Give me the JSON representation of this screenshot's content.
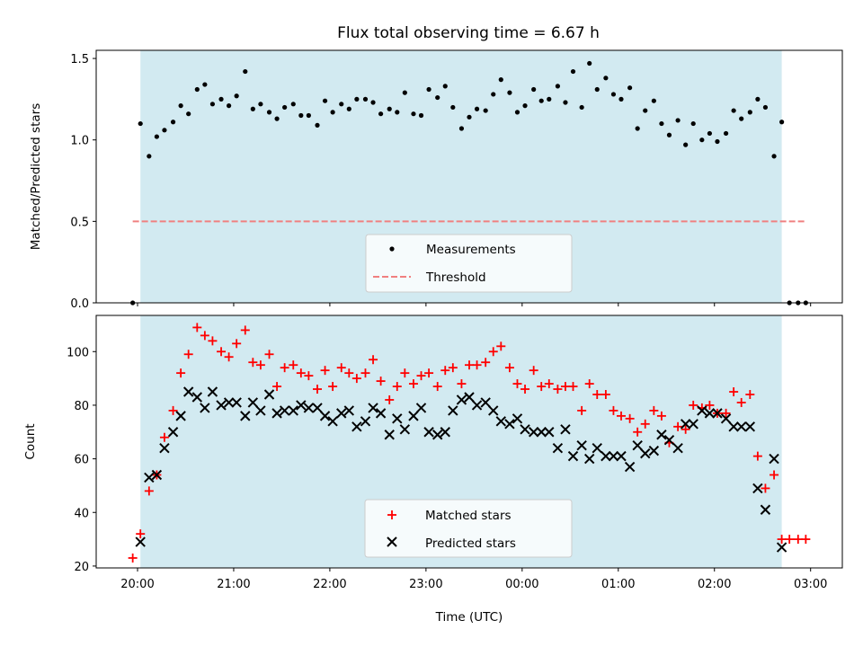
{
  "chart_data": [
    {
      "type": "scatter",
      "title": "Flux total observing time = 6.67 h",
      "xlabel": "",
      "ylabel": "Matched/Predicted stars",
      "xlim": [
        19.57,
        27.33
      ],
      "ylim": [
        0,
        1.55
      ],
      "x_ticks": [
        20,
        21,
        22,
        23,
        24,
        25,
        26,
        27
      ],
      "y_ticks": [
        0.0,
        0.5,
        1.0,
        1.5
      ],
      "y_tick_labels": [
        "0.0",
        "0.5",
        "1.0",
        "1.5"
      ],
      "shaded_span": [
        20.03,
        26.7
      ],
      "shade_color": "#add8e6",
      "legend_position": "lower center",
      "series": [
        {
          "name": "Measurements",
          "marker": "dot",
          "color": "#000000",
          "x": [
            19.95,
            20.03,
            20.12,
            20.2,
            20.28,
            20.37,
            20.45,
            20.53,
            20.62,
            20.7,
            20.78,
            20.87,
            20.95,
            21.03,
            21.12,
            21.2,
            21.28,
            21.37,
            21.45,
            21.53,
            21.62,
            21.7,
            21.78,
            21.87,
            21.95,
            22.03,
            22.12,
            22.2,
            22.28,
            22.37,
            22.45,
            22.53,
            22.62,
            22.7,
            22.78,
            22.87,
            22.95,
            23.03,
            23.12,
            23.2,
            23.28,
            23.37,
            23.45,
            23.53,
            23.62,
            23.7,
            23.78,
            23.87,
            23.95,
            24.03,
            24.12,
            24.2,
            24.28,
            24.37,
            24.45,
            24.53,
            24.62,
            24.7,
            24.78,
            24.87,
            24.95,
            25.03,
            25.12,
            25.2,
            25.28,
            25.37,
            25.45,
            25.53,
            25.62,
            25.7,
            25.78,
            25.87,
            25.95,
            26.03,
            26.12,
            26.2,
            26.28,
            26.37,
            26.45,
            26.53,
            26.62,
            26.7,
            26.78,
            26.87,
            26.95
          ],
          "y": [
            0.0,
            1.1,
            0.9,
            1.02,
            1.06,
            1.11,
            1.21,
            1.16,
            1.31,
            1.34,
            1.22,
            1.25,
            1.21,
            1.27,
            1.42,
            1.19,
            1.22,
            1.17,
            1.13,
            1.2,
            1.22,
            1.15,
            1.15,
            1.09,
            1.24,
            1.17,
            1.22,
            1.19,
            1.25,
            1.25,
            1.23,
            1.16,
            1.19,
            1.17,
            1.29,
            1.16,
            1.15,
            1.31,
            1.26,
            1.33,
            1.2,
            1.07,
            1.14,
            1.19,
            1.18,
            1.28,
            1.37,
            1.29,
            1.17,
            1.21,
            1.31,
            1.24,
            1.25,
            1.33,
            1.23,
            1.42,
            1.2,
            1.47,
            1.31,
            1.38,
            1.28,
            1.25,
            1.32,
            1.07,
            1.18,
            1.24,
            1.1,
            1.03,
            1.12,
            0.97,
            1.1,
            1.0,
            1.04,
            0.99,
            1.04,
            1.18,
            1.13,
            1.17,
            1.25,
            1.2,
            0.9,
            1.11,
            0.0,
            0.0,
            0.0
          ]
        },
        {
          "name": "Threshold",
          "marker": "dashed-line",
          "color": "#f08080",
          "x": [
            19.95,
            26.95
          ],
          "y": [
            0.5,
            0.5
          ]
        }
      ]
    },
    {
      "type": "scatter",
      "title": "",
      "xlabel": "Time (UTC)",
      "ylabel": "Count",
      "xlim": [
        19.57,
        27.33
      ],
      "ylim": [
        19.3,
        113.5
      ],
      "x_ticks": [
        20,
        21,
        22,
        23,
        24,
        25,
        26,
        27
      ],
      "x_tick_labels": [
        "20:00",
        "21:00",
        "22:00",
        "23:00",
        "00:00",
        "01:00",
        "02:00",
        "03:00"
      ],
      "y_ticks": [
        20,
        40,
        60,
        80,
        100
      ],
      "y_tick_labels": [
        "20",
        "40",
        "60",
        "80",
        "100"
      ],
      "shaded_span": [
        20.03,
        26.7
      ],
      "shade_color": "#add8e6",
      "legend_position": "lower center",
      "series": [
        {
          "name": "Matched stars",
          "marker": "plus",
          "color": "#ff0000",
          "x": [
            19.95,
            20.03,
            20.12,
            20.2,
            20.28,
            20.37,
            20.45,
            20.53,
            20.62,
            20.7,
            20.78,
            20.87,
            20.95,
            21.03,
            21.12,
            21.2,
            21.28,
            21.37,
            21.45,
            21.53,
            21.62,
            21.7,
            21.78,
            21.87,
            21.95,
            22.03,
            22.12,
            22.2,
            22.28,
            22.37,
            22.45,
            22.53,
            22.62,
            22.7,
            22.78,
            22.87,
            22.95,
            23.03,
            23.12,
            23.2,
            23.28,
            23.37,
            23.45,
            23.53,
            23.62,
            23.7,
            23.78,
            23.87,
            23.95,
            24.03,
            24.12,
            24.2,
            24.28,
            24.37,
            24.45,
            24.53,
            24.62,
            24.7,
            24.78,
            24.87,
            24.95,
            25.03,
            25.12,
            25.2,
            25.28,
            25.37,
            25.45,
            25.53,
            25.62,
            25.7,
            25.78,
            25.87,
            25.95,
            26.03,
            26.12,
            26.2,
            26.28,
            26.37,
            26.45,
            26.53,
            26.62,
            26.7,
            26.78,
            26.87,
            26.95
          ],
          "y": [
            23,
            32,
            48,
            54,
            68,
            78,
            92,
            99,
            109,
            106,
            104,
            100,
            98,
            103,
            108,
            96,
            95,
            99,
            87,
            94,
            95,
            92,
            91,
            86,
            93,
            87,
            94,
            92,
            90,
            92,
            97,
            89,
            82,
            87,
            92,
            88,
            91,
            92,
            87,
            93,
            94,
            88,
            95,
            95,
            96,
            100,
            102,
            94,
            88,
            86,
            93,
            87,
            88,
            86,
            87,
            87,
            78,
            88,
            84,
            84,
            78,
            76,
            75,
            70,
            73,
            78,
            76,
            66,
            72,
            71,
            80,
            79,
            80,
            77,
            77,
            85,
            81,
            84,
            61,
            49,
            54,
            30,
            30,
            30,
            30
          ]
        },
        {
          "name": "Predicted stars",
          "marker": "x",
          "color": "#000000",
          "x": [
            20.03,
            20.12,
            20.2,
            20.28,
            20.37,
            20.45,
            20.53,
            20.62,
            20.7,
            20.78,
            20.87,
            20.95,
            21.03,
            21.12,
            21.2,
            21.28,
            21.37,
            21.45,
            21.53,
            21.62,
            21.7,
            21.78,
            21.87,
            21.95,
            22.03,
            22.12,
            22.2,
            22.28,
            22.37,
            22.45,
            22.53,
            22.62,
            22.7,
            22.78,
            22.87,
            22.95,
            23.03,
            23.12,
            23.2,
            23.28,
            23.37,
            23.45,
            23.53,
            23.62,
            23.7,
            23.78,
            23.87,
            23.95,
            24.03,
            24.12,
            24.2,
            24.28,
            24.37,
            24.45,
            24.53,
            24.62,
            24.7,
            24.78,
            24.87,
            24.95,
            25.03,
            25.12,
            25.2,
            25.28,
            25.37,
            25.45,
            25.53,
            25.62,
            25.7,
            25.78,
            25.87,
            25.95,
            26.03,
            26.12,
            26.2,
            26.28,
            26.37,
            26.45,
            26.53,
            26.62,
            26.7
          ],
          "y": [
            29,
            53,
            54,
            64,
            70,
            76,
            85,
            83,
            79,
            85,
            80,
            81,
            81,
            76,
            81,
            78,
            84,
            77,
            78,
            78,
            80,
            79,
            79,
            76,
            74,
            77,
            78,
            72,
            74,
            79,
            77,
            69,
            75,
            71,
            76,
            79,
            70,
            69,
            70,
            78,
            82,
            83,
            80,
            81,
            78,
            74,
            73,
            75,
            71,
            70,
            70,
            70,
            64,
            71,
            61,
            65,
            60,
            64,
            61,
            61,
            61,
            57,
            65,
            62,
            63,
            69,
            67,
            64,
            73,
            73,
            78,
            77,
            77,
            75,
            72,
            72,
            72,
            49,
            41,
            60,
            27
          ]
        }
      ]
    }
  ]
}
